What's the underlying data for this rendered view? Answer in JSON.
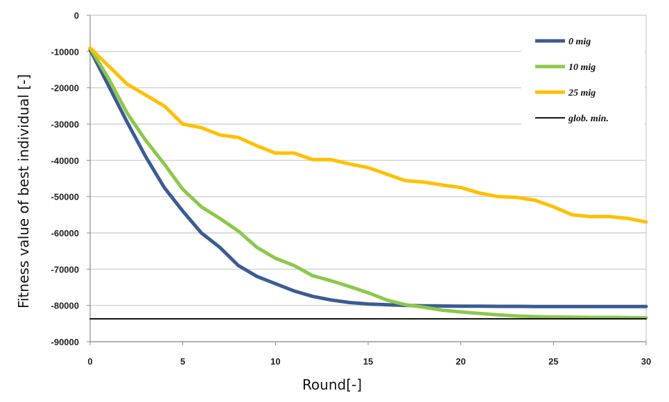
{
  "chart_data": {
    "type": "line",
    "title": "",
    "xlabel": "Round[-]",
    "ylabel": "Fitness value of best individual [-]",
    "xlim": [
      0,
      30
    ],
    "ylim": [
      -90000,
      0
    ],
    "x_ticks": [
      0,
      5,
      10,
      15,
      20,
      25,
      30
    ],
    "y_ticks": [
      0,
      -10000,
      -20000,
      -30000,
      -40000,
      -50000,
      -60000,
      -70000,
      -80000,
      -90000
    ],
    "grid": "horizontal",
    "legend_position": "top-right",
    "x": [
      0,
      1,
      2,
      3,
      4,
      5,
      6,
      7,
      8,
      9,
      10,
      11,
      12,
      13,
      14,
      15,
      16,
      17,
      18,
      19,
      20,
      21,
      22,
      23,
      24,
      25,
      26,
      27,
      28,
      29,
      30
    ],
    "series": [
      {
        "name": "0 mig",
        "color": "#3B5B93",
        "values": [
          -9500,
          -19500,
          -29500,
          -39000,
          -47500,
          -54000,
          -60000,
          -64000,
          -69000,
          -72000,
          -74000,
          -76000,
          -77500,
          -78500,
          -79200,
          -79600,
          -79800,
          -80000,
          -80100,
          -80150,
          -80200,
          -80200,
          -80250,
          -80250,
          -80300,
          -80300,
          -80300,
          -80300,
          -80300,
          -80300,
          -80300
        ]
      },
      {
        "name": "10 mig",
        "color": "#8CC84B",
        "values": [
          -9000,
          -17500,
          -27000,
          -34500,
          -41000,
          -48000,
          -52800,
          -56000,
          -59500,
          -64000,
          -67000,
          -69000,
          -71800,
          -73200,
          -74800,
          -76500,
          -78500,
          -79800,
          -80500,
          -81300,
          -81800,
          -82200,
          -82600,
          -82900,
          -83100,
          -83200,
          -83250,
          -83300,
          -83300,
          -83350,
          -83400
        ]
      },
      {
        "name": "25 mig",
        "color": "#FFC000",
        "values": [
          -9000,
          -14000,
          -19000,
          -22000,
          -25000,
          -30000,
          -31000,
          -33000,
          -33700,
          -36000,
          -38000,
          -38000,
          -39800,
          -39800,
          -41000,
          -42000,
          -43800,
          -45600,
          -46000,
          -46800,
          -47500,
          -49000,
          -50000,
          -50200,
          -51000,
          -52800,
          -55000,
          -55500,
          -55500,
          -56000,
          -57000
        ]
      },
      {
        "name": "glob. min.",
        "color": "#111111",
        "values": [
          -83700,
          -83700,
          -83700,
          -83700,
          -83700,
          -83700,
          -83700,
          -83700,
          -83700,
          -83700,
          -83700,
          -83700,
          -83700,
          -83700,
          -83700,
          -83700,
          -83700,
          -83700,
          -83700,
          -83700,
          -83700,
          -83700,
          -83700,
          -83700,
          -83700,
          -83700,
          -83700,
          -83700,
          -83700,
          -83700,
          -83700
        ]
      }
    ]
  }
}
